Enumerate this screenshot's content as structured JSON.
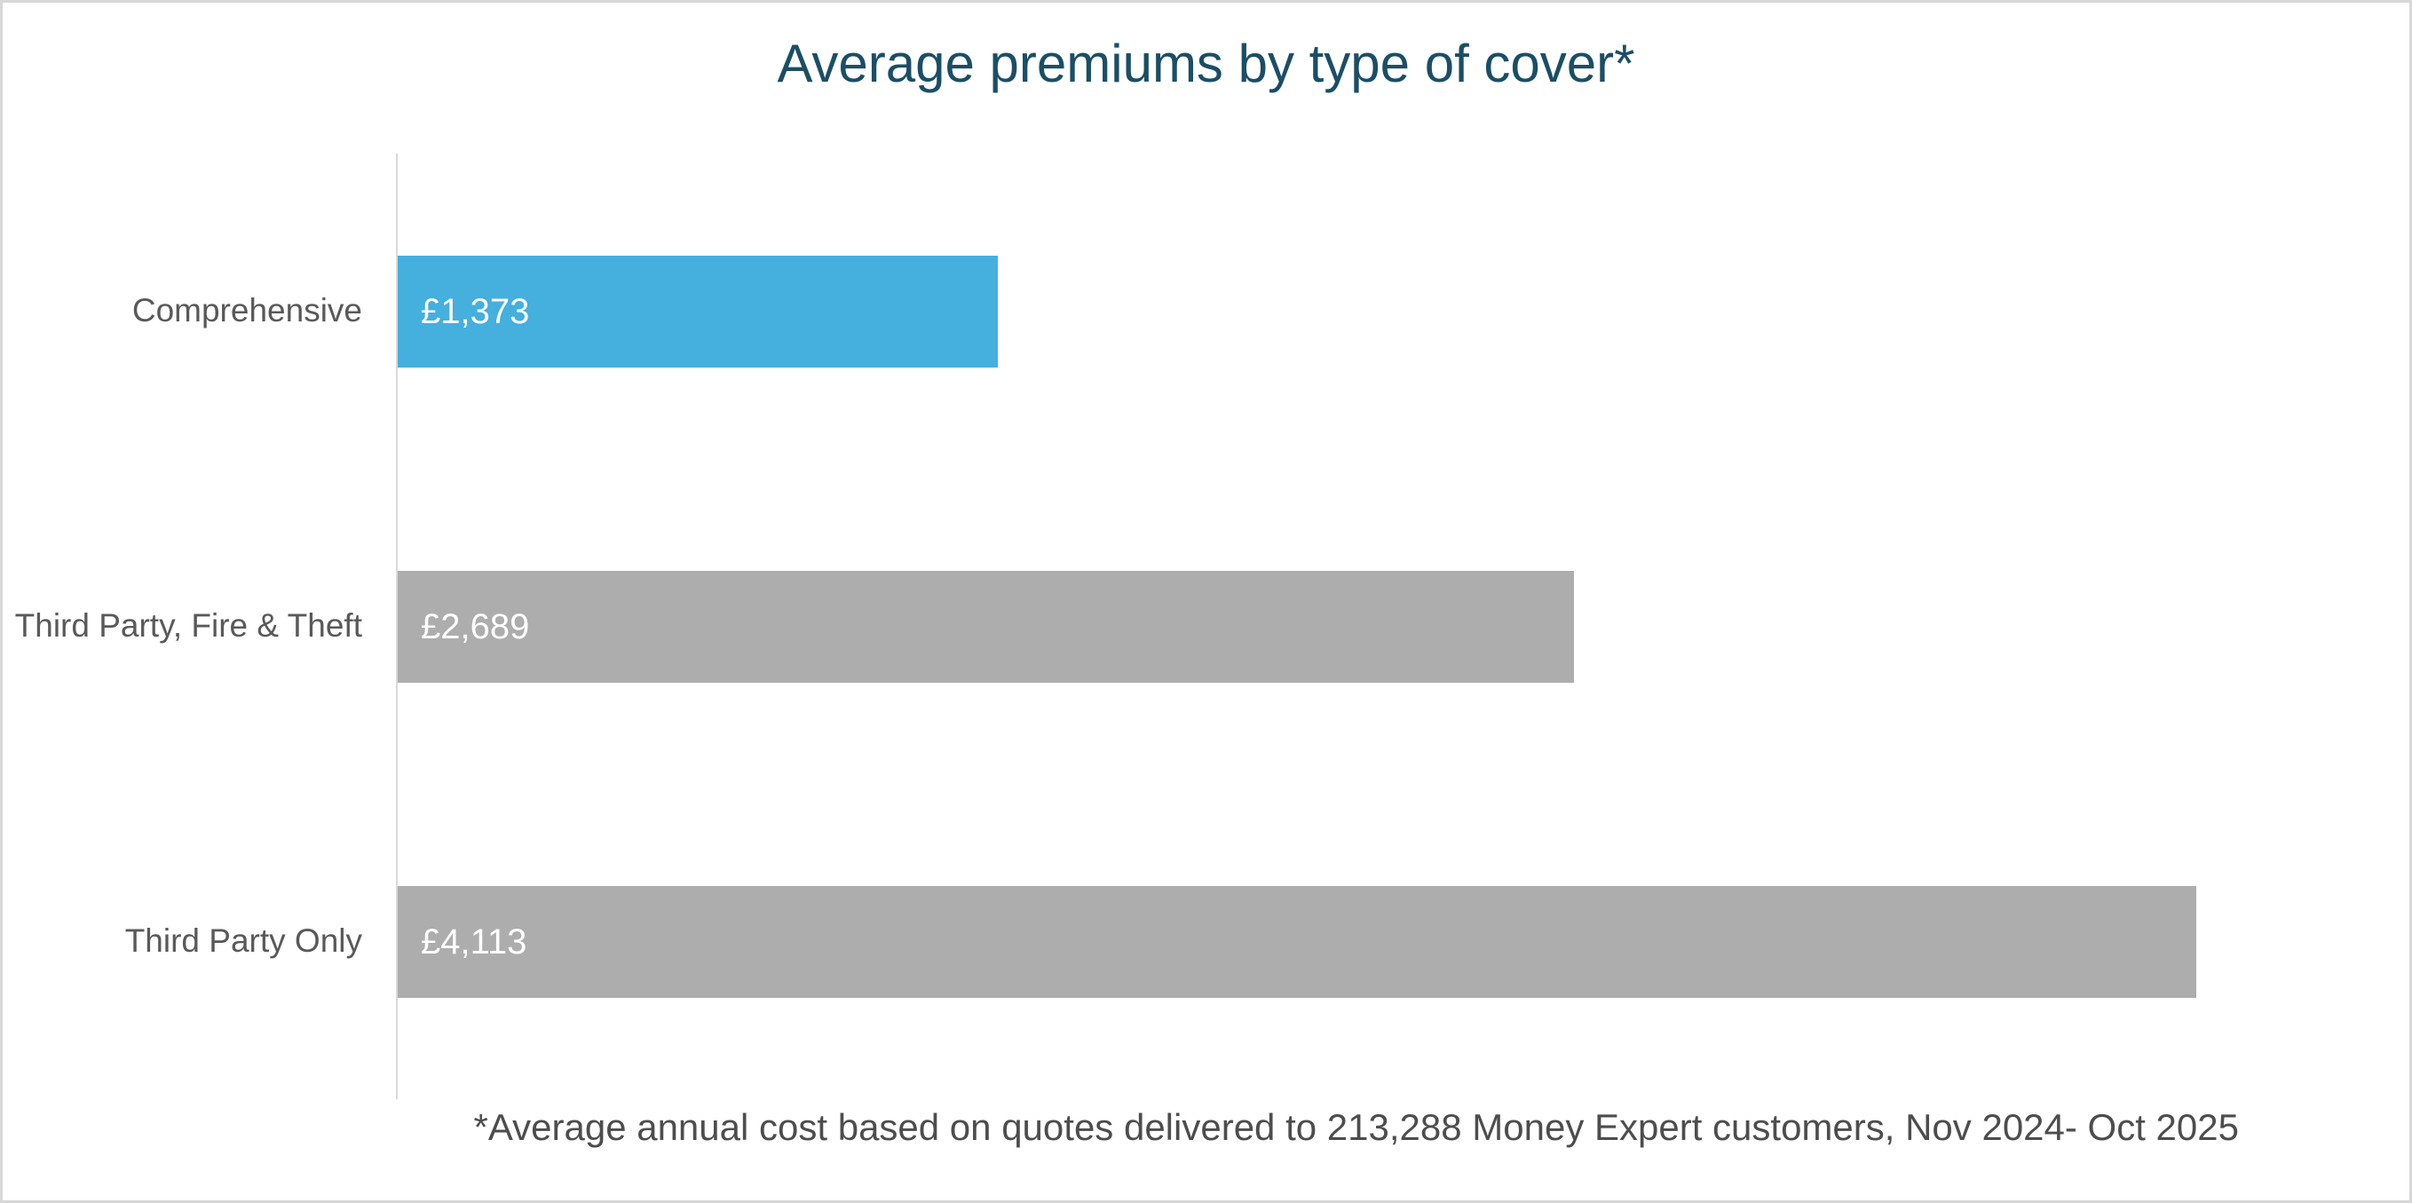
{
  "frame": {
    "border_color": "#d7d7d7",
    "background_color": "#ffffff"
  },
  "chart_data": {
    "type": "bar",
    "orientation": "horizontal",
    "title": "Average premiums by type of cover*",
    "categories": [
      "Comprehensive",
      "Third Party, Fire & Theft",
      "Third Party Only"
    ],
    "values": [
      1373,
      2689,
      4113
    ],
    "value_labels": [
      "£1,373",
      "£2,689",
      "£4,113"
    ],
    "bar_colors": [
      "#45afde",
      "#adadad",
      "#adadad"
    ],
    "xlim": [
      0,
      4600
    ],
    "grid": false,
    "legend": false,
    "value_label_position": "inside-left",
    "axis_line_color": "#d9d9d9",
    "title_color": "#1b4e66",
    "category_label_color": "#595959",
    "value_label_color": "#ffffff",
    "footnote": "*Average annual cost based on quotes delivered to 213,288 Money Expert customers, Nov 2024- Oct 2025",
    "footnote_color": "#4d4d4d"
  }
}
